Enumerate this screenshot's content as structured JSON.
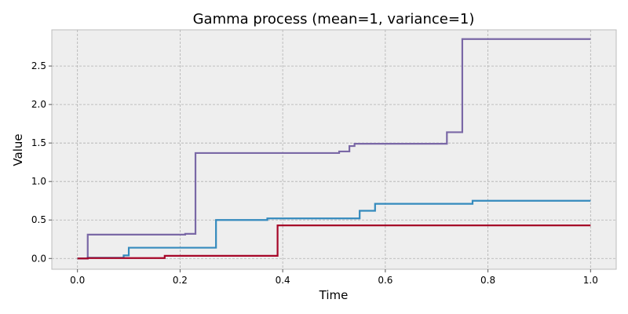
{
  "chart_data": {
    "type": "line",
    "step": "post",
    "title": "Gamma process (mean=1, variance=1)",
    "xlabel": "Time",
    "ylabel": "Value",
    "xlim": [
      -0.05,
      1.05
    ],
    "ylim": [
      -0.14,
      2.97
    ],
    "xticks": [
      0.0,
      0.2,
      0.4,
      0.6,
      0.8,
      1.0
    ],
    "xtick_labels": [
      "0.0",
      "0.2",
      "0.4",
      "0.6",
      "0.8",
      "1.0"
    ],
    "yticks": [
      0.0,
      0.5,
      1.0,
      1.5,
      2.0,
      2.5
    ],
    "ytick_labels": [
      "0.0",
      "0.5",
      "1.0",
      "1.5",
      "2.0",
      "2.5"
    ],
    "grid": true,
    "series": [
      {
        "color": "#7a68a6",
        "x": [
          0.0,
          0.02,
          0.21,
          0.23,
          0.51,
          0.53,
          0.54,
          0.72,
          0.75,
          1.0
        ],
        "y": [
          0.0,
          0.31,
          0.32,
          1.37,
          1.39,
          1.46,
          1.49,
          1.64,
          2.85,
          2.85
        ]
      },
      {
        "color": "#348abd",
        "x": [
          0.0,
          0.02,
          0.09,
          0.1,
          0.27,
          0.37,
          0.55,
          0.58,
          0.77,
          1.0
        ],
        "y": [
          0.0,
          0.01,
          0.04,
          0.14,
          0.5,
          0.52,
          0.62,
          0.71,
          0.75,
          0.75
        ]
      },
      {
        "color": "#a60628",
        "x": [
          0.0,
          0.02,
          0.17,
          0.39,
          1.0
        ],
        "y": [
          0.0,
          0.005,
          0.035,
          0.43,
          0.43
        ]
      }
    ]
  }
}
